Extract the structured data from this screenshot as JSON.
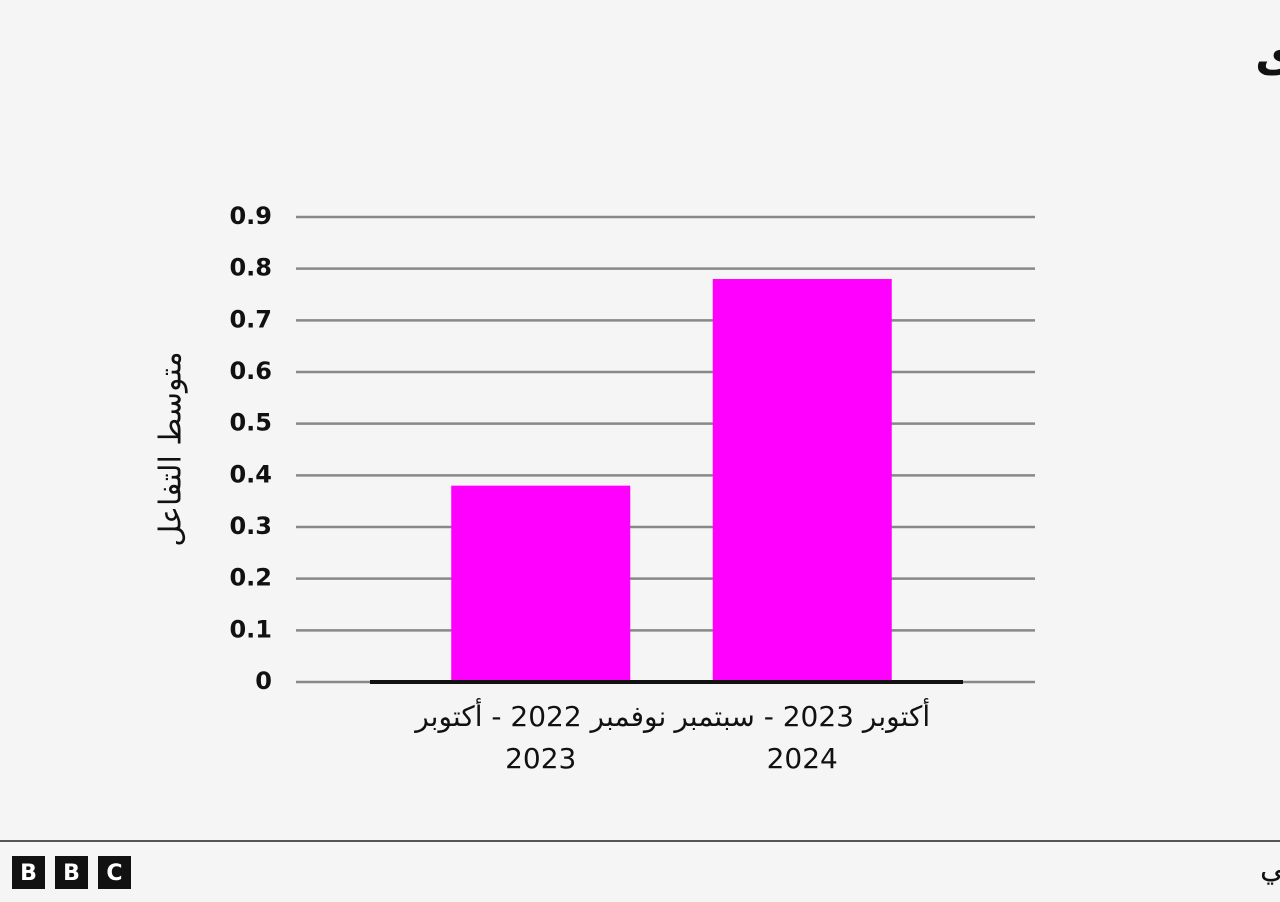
{
  "chart_data": {
    "type": "bar",
    "title": "صفحات عربية أخرى",
    "y_label": "متوسط التفاعل",
    "categories": [
      "نوفمبر 2022 - أكتوبر 2023",
      "أكتوبر 2023 - سبتمبر 2024"
    ],
    "values": [
      0.38,
      0.78
    ],
    "color": "#ff00ff",
    "ylim": [
      0,
      0.9
    ],
    "yticks": [
      0,
      0.1,
      0.2,
      0.3,
      0.4,
      0.5,
      0.6,
      0.7,
      0.8,
      0.9
    ],
    "grid": true,
    "source": "بيانات جمعتها بي بي سي",
    "logo": [
      "B",
      "B",
      "C"
    ]
  }
}
